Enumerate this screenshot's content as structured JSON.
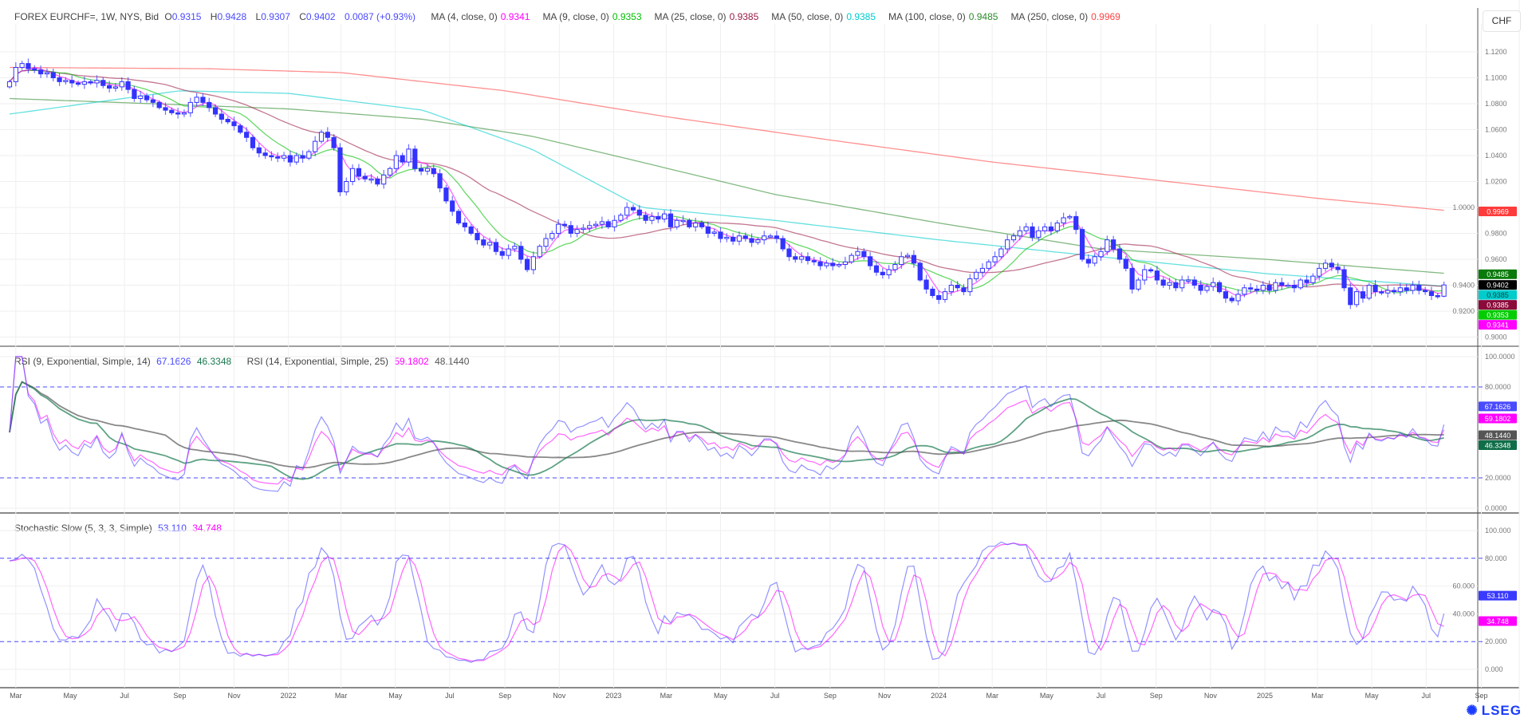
{
  "header": {
    "instrument": "FOREX EURCHF=, 1W, NYS, Bid",
    "open_label": "O",
    "open": "0.9315",
    "high_label": "H",
    "high": "0.9428",
    "low_label": "L",
    "low": "0.9307",
    "close_label": "C",
    "close": "0.9402",
    "change": "0.0087 (+0.93%)",
    "ma": [
      {
        "label": "MA (4, close, 0)",
        "value": "0.9341",
        "color": "#ff00ff"
      },
      {
        "label": "MA (9, close, 0)",
        "value": "0.9353",
        "color": "#00c000"
      },
      {
        "label": "MA (25, close, 0)",
        "value": "0.9385",
        "color": "#9b1c47"
      },
      {
        "label": "MA (50, close, 0)",
        "value": "0.9385",
        "color": "#00cccc"
      },
      {
        "label": "MA (100, close, 0)",
        "value": "0.9485",
        "color": "#2e8b2e"
      },
      {
        "label": "MA (250, close, 0)",
        "value": "0.9969",
        "color": "#ff4444"
      }
    ]
  },
  "currency_button": "CHF",
  "logo": "LSEG",
  "colors": {
    "candle": "#3333ff",
    "value_blue": "#4a4aff",
    "grid": "#ececec",
    "dash": "#4a4aff"
  },
  "rsi_panel": {
    "title1": "RSI (9, Exponential, Simple, 14)",
    "v1": "67.1626",
    "v1_color": "#4a4aff",
    "v1b": "46.3348",
    "v1b_color": "#1a7a50",
    "title2": "RSI (14, Exponential, Simple, 25)",
    "v2": "59.1802",
    "v2_color": "#ff00ff",
    "v2b": "48.1440",
    "v2b_color": "#555555",
    "ticks": [
      "100.0000",
      "80.0000",
      "20.0000",
      "0.0000"
    ],
    "tick_values": [
      100,
      80,
      20,
      0
    ],
    "levels": [
      80,
      20
    ]
  },
  "stoch_panel": {
    "title": "Stochastic Slow (5, 3, 3, Simple)",
    "k": "53.110",
    "k_color": "#4a4aff",
    "d": "34.748",
    "d_color": "#ff00ff",
    "ticks": [
      "100.000",
      "80.000",
      "60.000",
      "40.000",
      "20.000",
      "0.000"
    ],
    "tick_values": [
      100,
      80,
      60,
      40,
      20,
      0
    ],
    "levels": [
      80,
      20
    ]
  },
  "chart_data": {
    "type": "candlestick",
    "interval": "1W",
    "start_week": "2021-02-22",
    "last_candle": {
      "open": 0.9315,
      "high": 0.9428,
      "low": 0.9307,
      "close": 0.9402
    },
    "closes": [
      1.097,
      1.108,
      1.111,
      1.107,
      1.106,
      1.103,
      1.104,
      1.1,
      1.097,
      1.098,
      1.096,
      1.095,
      1.097,
      1.096,
      1.098,
      1.094,
      1.092,
      1.093,
      1.097,
      1.091,
      1.084,
      1.086,
      1.083,
      1.081,
      1.077,
      1.075,
      1.073,
      1.072,
      1.073,
      1.081,
      1.085,
      1.081,
      1.077,
      1.072,
      1.068,
      1.066,
      1.063,
      1.058,
      1.054,
      1.046,
      1.042,
      1.04,
      1.039,
      1.038,
      1.04,
      1.035,
      1.04,
      1.038,
      1.043,
      1.051,
      1.058,
      1.054,
      1.046,
      1.012,
      1.02,
      1.03,
      1.024,
      1.022,
      1.022,
      1.018,
      1.025,
      1.03,
      1.04,
      1.035,
      1.045,
      1.03,
      1.028,
      1.03,
      1.026,
      1.015,
      1.005,
      0.997,
      0.988,
      0.985,
      0.98,
      0.975,
      0.971,
      0.973,
      0.966,
      0.963,
      0.968,
      0.97,
      0.96,
      0.952,
      0.962,
      0.97,
      0.976,
      0.98,
      0.987,
      0.986,
      0.98,
      0.983,
      0.984,
      0.986,
      0.987,
      0.989,
      0.985,
      0.99,
      0.994,
      1.0,
      0.998,
      0.994,
      0.99,
      0.993,
      0.991,
      0.995,
      0.985,
      0.99,
      0.99,
      0.985,
      0.988,
      0.985,
      0.98,
      0.981,
      0.976,
      0.977,
      0.974,
      0.978,
      0.976,
      0.973,
      0.975,
      0.978,
      0.978,
      0.976,
      0.968,
      0.962,
      0.96,
      0.962,
      0.959,
      0.958,
      0.955,
      0.957,
      0.955,
      0.956,
      0.958,
      0.963,
      0.966,
      0.962,
      0.955,
      0.95,
      0.948,
      0.952,
      0.956,
      0.962,
      0.963,
      0.957,
      0.944,
      0.937,
      0.932,
      0.929,
      0.935,
      0.94,
      0.938,
      0.935,
      0.945,
      0.95,
      0.953,
      0.958,
      0.962,
      0.968,
      0.975,
      0.978,
      0.982,
      0.985,
      0.977,
      0.982,
      0.985,
      0.982,
      0.988,
      0.992,
      0.993,
      0.983,
      0.96,
      0.957,
      0.962,
      0.966,
      0.975,
      0.968,
      0.96,
      0.953,
      0.937,
      0.944,
      0.952,
      0.951,
      0.944,
      0.94,
      0.942,
      0.938,
      0.944,
      0.944,
      0.94,
      0.936,
      0.939,
      0.942,
      0.935,
      0.93,
      0.928,
      0.933,
      0.938,
      0.937,
      0.936,
      0.94,
      0.936,
      0.942,
      0.94,
      0.94,
      0.938,
      0.944,
      0.942,
      0.947,
      0.953,
      0.957,
      0.954,
      0.952,
      0.938,
      0.925,
      0.935,
      0.93,
      0.94,
      0.935,
      0.934,
      0.936,
      0.935,
      0.938,
      0.936,
      0.94,
      0.936,
      0.935,
      0.932,
      0.9315,
      0.9402
    ],
    "ma_long": {
      "ma50": [
        [
          "2021-02-22",
          1.072
        ],
        [
          "2021-09-01",
          1.09
        ],
        [
          "2022-01-01",
          1.088
        ],
        [
          "2022-06-01",
          1.075
        ],
        [
          "2022-10-01",
          1.045
        ],
        [
          "2023-02-01",
          1.0
        ],
        [
          "2023-07-01",
          0.99
        ],
        [
          "2024-01-01",
          0.975
        ],
        [
          "2024-07-01",
          0.962
        ],
        [
          "2025-01-01",
          0.949
        ],
        [
          "2025-08-04",
          0.9385
        ]
      ],
      "ma100": [
        [
          "2021-02-22",
          1.084
        ],
        [
          "2021-08-01",
          1.08
        ],
        [
          "2022-01-01",
          1.076
        ],
        [
          "2022-06-01",
          1.068
        ],
        [
          "2022-10-01",
          1.055
        ],
        [
          "2023-02-01",
          1.035
        ],
        [
          "2023-07-01",
          1.01
        ],
        [
          "2024-01-01",
          0.988
        ],
        [
          "2024-07-01",
          0.968
        ],
        [
          "2025-01-01",
          0.96
        ],
        [
          "2025-08-04",
          0.9485
        ]
      ],
      "ma250": [
        [
          "2021-02-22",
          1.108
        ],
        [
          "2021-10-01",
          1.107
        ],
        [
          "2022-03-01",
          1.104
        ],
        [
          "2022-09-01",
          1.09
        ],
        [
          "2023-03-01",
          1.07
        ],
        [
          "2023-09-01",
          1.052
        ],
        [
          "2024-03-01",
          1.035
        ],
        [
          "2024-09-01",
          1.021
        ],
        [
          "2025-03-01",
          1.007
        ],
        [
          "2025-08-04",
          0.9969
        ]
      ]
    },
    "price_ticks": [
      "1.1200",
      "1.1000",
      "1.0800",
      "1.0600",
      "1.0400",
      "1.0200",
      "1.0000",
      "0.9800",
      "0.9600",
      "0.9400",
      "0.9200",
      "0.9000"
    ],
    "price_tick_values": [
      1.12,
      1.1,
      1.08,
      1.06,
      1.04,
      1.02,
      1.0,
      0.98,
      0.96,
      0.94,
      0.92,
      0.9
    ],
    "x_ticks": [
      [
        "Mar",
        "2021-03-01"
      ],
      [
        "May",
        "2021-05-01"
      ],
      [
        "Jul",
        "2021-07-01"
      ],
      [
        "Sep",
        "2021-09-01"
      ],
      [
        "Nov",
        "2021-11-01"
      ],
      [
        "2022",
        "2022-01-01"
      ],
      [
        "Mar",
        "2022-03-01"
      ],
      [
        "May",
        "2022-05-01"
      ],
      [
        "Jul",
        "2022-07-01"
      ],
      [
        "Sep",
        "2022-09-01"
      ],
      [
        "Nov",
        "2022-11-01"
      ],
      [
        "2023",
        "2023-01-01"
      ],
      [
        "Mar",
        "2023-03-01"
      ],
      [
        "May",
        "2023-05-01"
      ],
      [
        "Jul",
        "2023-07-01"
      ],
      [
        "Sep",
        "2023-09-01"
      ],
      [
        "Nov",
        "2023-11-01"
      ],
      [
        "2024",
        "2024-01-01"
      ],
      [
        "Mar",
        "2024-03-01"
      ],
      [
        "May",
        "2024-05-01"
      ],
      [
        "Jul",
        "2024-07-01"
      ],
      [
        "Sep",
        "2024-09-01"
      ],
      [
        "Nov",
        "2024-11-01"
      ],
      [
        "2025",
        "2025-01-01"
      ],
      [
        "Mar",
        "2025-03-01"
      ],
      [
        "May",
        "2025-05-01"
      ],
      [
        "Jul",
        "2025-07-01"
      ],
      [
        "Sep",
        "2025-09-01"
      ]
    ],
    "badges": [
      {
        "value": "0.9969",
        "color": "#ff3b3b"
      },
      {
        "value": "0.9485",
        "color": "#0a7a0a"
      },
      {
        "value": "0.9402",
        "color": "#000000"
      },
      {
        "value": "0.9385",
        "color": "#00cccc",
        "text_color": "#004444"
      },
      {
        "value": "0.9385",
        "color": "#8b0a3a"
      },
      {
        "value": "0.9353",
        "color": "#00cc00"
      },
      {
        "value": "0.9341",
        "color": "#ff00ff"
      }
    ]
  }
}
